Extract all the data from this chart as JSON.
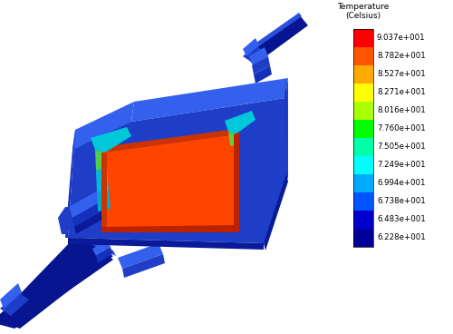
{
  "title": "Temperature\n(Celsius)",
  "colorbar_values": [
    "9.037e+001",
    "8.782e+001",
    "8.527e+001",
    "8.271e+001",
    "8.016e+001",
    "7.760e+001",
    "7.505e+001",
    "7.249e+001",
    "6.994e+001",
    "6.738e+001",
    "6.483e+001",
    "6.228e+001"
  ],
  "colorbar_colors": [
    "#FF0000",
    "#FF5500",
    "#FFAA00",
    "#FFFF00",
    "#AAFF00",
    "#00FF00",
    "#00FFAA",
    "#00FFFF",
    "#00AAFF",
    "#0055FF",
    "#0000CC",
    "#000099"
  ],
  "bg_color": "#FFFFFF",
  "c_blue_dark": "#0A1A99",
  "c_blue_mid": "#1530BB",
  "c_blue_light": "#2A50DD",
  "c_blue_face": "#1E3EC8",
  "c_blue_top": "#3460EE",
  "c_cyan": "#00C8D8",
  "c_cyan2": "#00AACC",
  "c_green": "#55DD44",
  "c_orange": "#FF4400",
  "c_orange_dark": "#CC3300",
  "c_orange_side": "#BB2200",
  "c_shaft": "#081590"
}
